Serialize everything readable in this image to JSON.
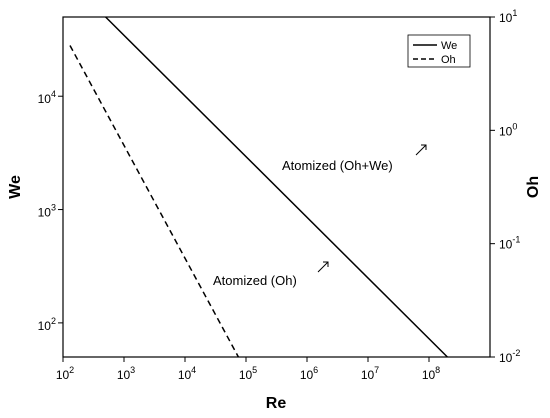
{
  "chart_data": {
    "type": "line",
    "xlabel": "Re",
    "ylabel": "We",
    "y2label": "Oh",
    "xscale": "log",
    "yscale": "log",
    "y2scale": "log",
    "xlim": [
      100,
      1000000000
    ],
    "ylim": [
      50,
      50000
    ],
    "y2lim": [
      0.01,
      10
    ],
    "x_ticks": [
      "10^2",
      "10^3",
      "10^4",
      "10^5",
      "10^6",
      "10^7",
      "10^8"
    ],
    "y_ticks": [
      "10^2",
      "10^3",
      "10^4"
    ],
    "y2_ticks": [
      "10^-2",
      "10^-1",
      "10^0",
      "10^1"
    ],
    "grid": false,
    "legend_position": "top-right",
    "series": [
      {
        "name": "We",
        "axis": "left",
        "line_style": "solid",
        "color": "#000000",
        "points": [
          [
            500,
            50000
          ],
          [
            200000000,
            50
          ]
        ]
      },
      {
        "name": "Oh",
        "axis": "right",
        "line_style": "dashed",
        "color": "#000000",
        "points": [
          [
            130,
            5.6
          ],
          [
            75000,
            0.01
          ]
        ]
      }
    ],
    "annotations": [
      {
        "text": "Atomized (Oh+We)",
        "arrow": "up-right"
      },
      {
        "text": "Atomized (Oh)",
        "arrow": "up-right"
      }
    ]
  }
}
